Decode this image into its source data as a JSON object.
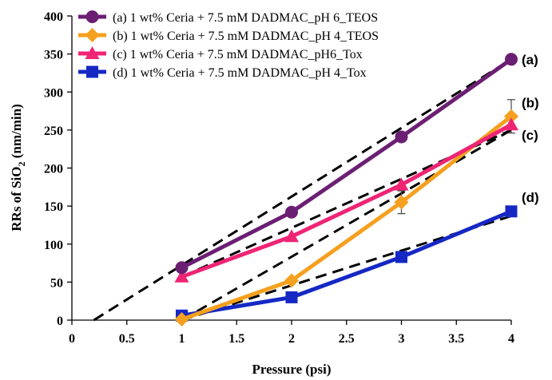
{
  "chart_data": {
    "type": "line",
    "title": "",
    "xlabel": "Pressure (psi)",
    "ylabel": "RRs of SiO",
    "ylabel_subscript": "2",
    "ylabel_suffix": " (nm/min)",
    "xlim": [
      0,
      4
    ],
    "ylim": [
      0,
      400
    ],
    "xticks": [
      0,
      0.5,
      1,
      1.5,
      2,
      2.5,
      3,
      3.5,
      4
    ],
    "yticks": [
      0,
      50,
      100,
      150,
      200,
      250,
      300,
      350,
      400
    ],
    "x": [
      1,
      2,
      3,
      4
    ],
    "legend_position": "top-left",
    "series": [
      {
        "name": "(a) 1 wt% Ceria + 7.5 mM DADMAC_pH 6_TEOS",
        "end_label": "(a)",
        "color": "#6b1f73",
        "marker": "circle",
        "values": [
          69,
          142,
          241,
          343
        ],
        "error": [
          0,
          0,
          0,
          0
        ],
        "fit_line": {
          "x": [
            0.2,
            4
          ],
          "y": [
            0,
            343
          ]
        }
      },
      {
        "name": "(b) 1 wt% Ceria + 7.5 mM DADMAC_pH 4_TEOS",
        "end_label": "(b)",
        "color": "#f5a01e",
        "marker": "diamond",
        "values": [
          1,
          52,
          155,
          268
        ],
        "error": [
          0,
          0,
          15,
          22
        ],
        "fit_line": {
          "x": [
            1,
            4
          ],
          "y": [
            0,
            250
          ]
        }
      },
      {
        "name": "(c) 1 wt% Ceria + 7.5 mM DADMAC_pH6_Tox",
        "end_label": "(c)",
        "color": "#ef2474",
        "marker": "triangle",
        "values": [
          57,
          110,
          178,
          257
        ],
        "error": [
          0,
          0,
          0,
          0
        ],
        "fit_line": {
          "x": [
            1,
            4
          ],
          "y": [
            57,
            250
          ]
        }
      },
      {
        "name": "(d) 1 wt% Ceria + 7.5 mM DADMAC_pH 4_Tox",
        "end_label": "(d)",
        "color": "#1528c4",
        "marker": "square",
        "values": [
          6,
          30,
          83,
          143
        ],
        "error": [
          0,
          0,
          0,
          0
        ],
        "fit_line": {
          "x": [
            1,
            4
          ],
          "y": [
            0,
            137
          ]
        }
      }
    ]
  }
}
